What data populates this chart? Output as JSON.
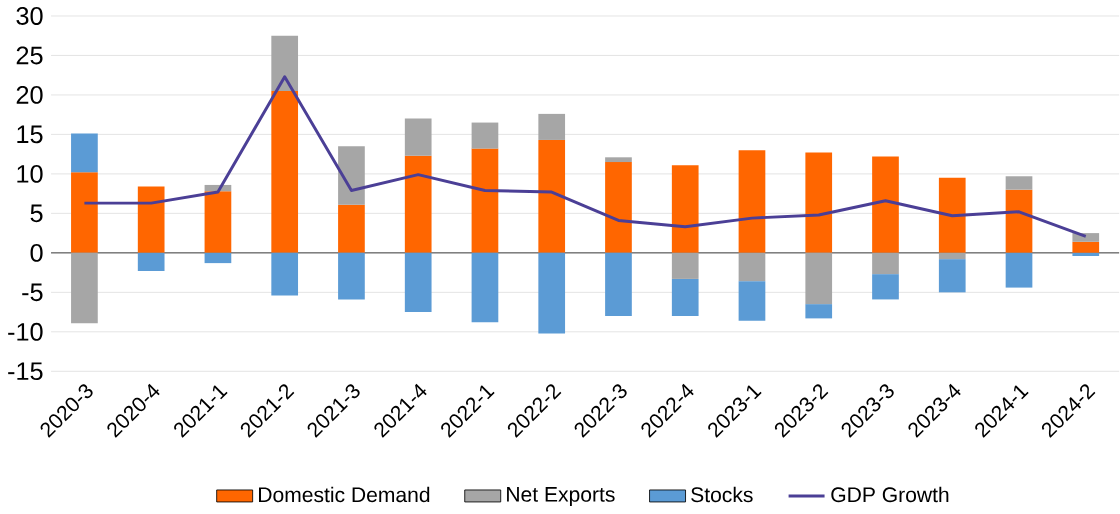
{
  "chart_data": {
    "type": "bar",
    "stacked": true,
    "categories": [
      "2020-3",
      "2020-4",
      "2021-1",
      "2021-2",
      "2021-3",
      "2021-4",
      "2022-1",
      "2022-2",
      "2022-3",
      "2022-4",
      "2023-1",
      "2023-2",
      "2023-3",
      "2023-4",
      "2024-1",
      "2024-2"
    ],
    "series": [
      {
        "name": "Domestic Demand",
        "color": "#ff6600",
        "values": [
          10.2,
          8.4,
          7.8,
          20.5,
          6.1,
          12.3,
          13.2,
          14.3,
          11.5,
          11.1,
          13.0,
          12.7,
          12.2,
          9.5,
          8.0,
          1.4
        ]
      },
      {
        "name": "Net Exports",
        "color": "#a6a6a6",
        "values": [
          -8.9,
          0,
          0.8,
          7.0,
          7.4,
          4.7,
          3.3,
          3.3,
          0.6,
          -3.3,
          -3.6,
          -6.5,
          -2.7,
          -0.8,
          1.7,
          1.1
        ]
      },
      {
        "name": "Stocks",
        "color": "#5b9bd5",
        "values": [
          4.9,
          -2.3,
          -1.3,
          -5.4,
          -5.9,
          -7.5,
          -8.8,
          -10.2,
          -8.0,
          -4.7,
          -5.0,
          -1.8,
          -3.2,
          -4.2,
          -4.4,
          -0.4
        ]
      },
      {
        "name": "GDP Growth",
        "type": "line",
        "color": "#4b3f96",
        "marker": "none",
        "values": [
          6.3,
          6.3,
          7.7,
          22.3,
          7.9,
          9.9,
          7.9,
          7.7,
          4.1,
          3.3,
          4.4,
          4.8,
          6.6,
          4.7,
          5.2,
          2.1
        ]
      }
    ],
    "ylim": [
      -15,
      30
    ],
    "yticks": [
      -15,
      -10,
      -5,
      0,
      5,
      10,
      15,
      20,
      25,
      30
    ],
    "grid": "y",
    "legend": "bottom"
  }
}
